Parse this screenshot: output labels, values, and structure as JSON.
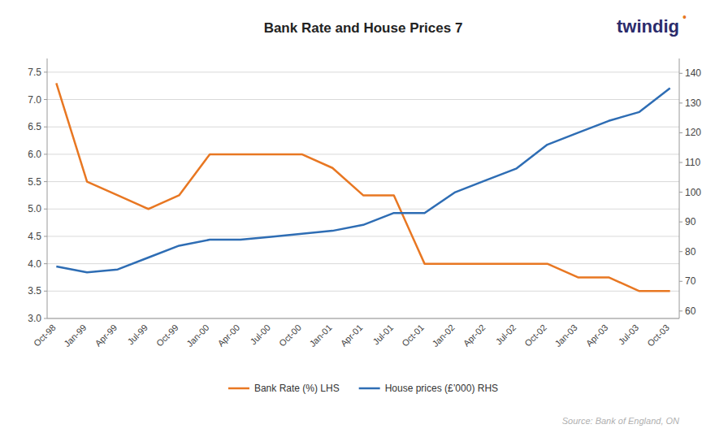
{
  "chart_data": {
    "type": "line",
    "title": "Bank Rate and House Prices 7",
    "categories": [
      "Oct-98",
      "Jan-99",
      "Apr-99",
      "Jul-99",
      "Oct-99",
      "Jan-00",
      "Apr-00",
      "Jul-00",
      "Oct-00",
      "Jan-01",
      "Apr-01",
      "Jul-01",
      "Oct-01",
      "Jan-02",
      "Apr-02",
      "Jul-02",
      "Oct-02",
      "Jan-03",
      "Apr-03",
      "Jul-03",
      "Oct-03"
    ],
    "series": [
      {
        "name": "Bank Rate (%) LHS",
        "color": "#E87722",
        "values": [
          7.3,
          5.5,
          5.25,
          5.0,
          5.25,
          6.0,
          6.0,
          6.0,
          6.0,
          5.75,
          5.25,
          5.25,
          4.0,
          4.0,
          4.0,
          4.0,
          4.0,
          3.75,
          3.75,
          3.5,
          3.5
        ]
      },
      {
        "name": "House prices (£’000) RHS",
        "color": "#2E6DB4",
        "axis": "y2",
        "values": [
          75,
          73,
          74,
          78,
          82,
          84,
          84,
          85,
          86,
          87,
          89,
          93,
          93,
          100,
          104,
          108,
          116,
          120,
          124,
          127,
          135
        ]
      }
    ],
    "ylim": [
      3.0,
      7.75
    ],
    "yticks": [
      {
        "value": 3.0,
        "label": "3.0"
      },
      3.5,
      {
        "value": 4.0,
        "label": "4.0"
      },
      4.5,
      {
        "value": 5.0,
        "label": "5.0"
      },
      5.5,
      {
        "value": 6.0,
        "label": "6.0"
      },
      6.5,
      {
        "value": 7.0,
        "label": "7.0"
      },
      7.5
    ],
    "y2lim": [
      57.5,
      145
    ],
    "y2ticks": [
      60,
      70,
      80,
      90,
      100,
      110,
      120,
      130,
      140
    ],
    "grid": true,
    "legend": "bottom",
    "annotations": [
      {
        "text": "twindig",
        "color": "#2B2B6B"
      },
      {
        "text": "•",
        "color": "#E87722"
      },
      {
        "text": "Source: Bank of England, ON",
        "color": "#b0b0b0"
      }
    ]
  }
}
